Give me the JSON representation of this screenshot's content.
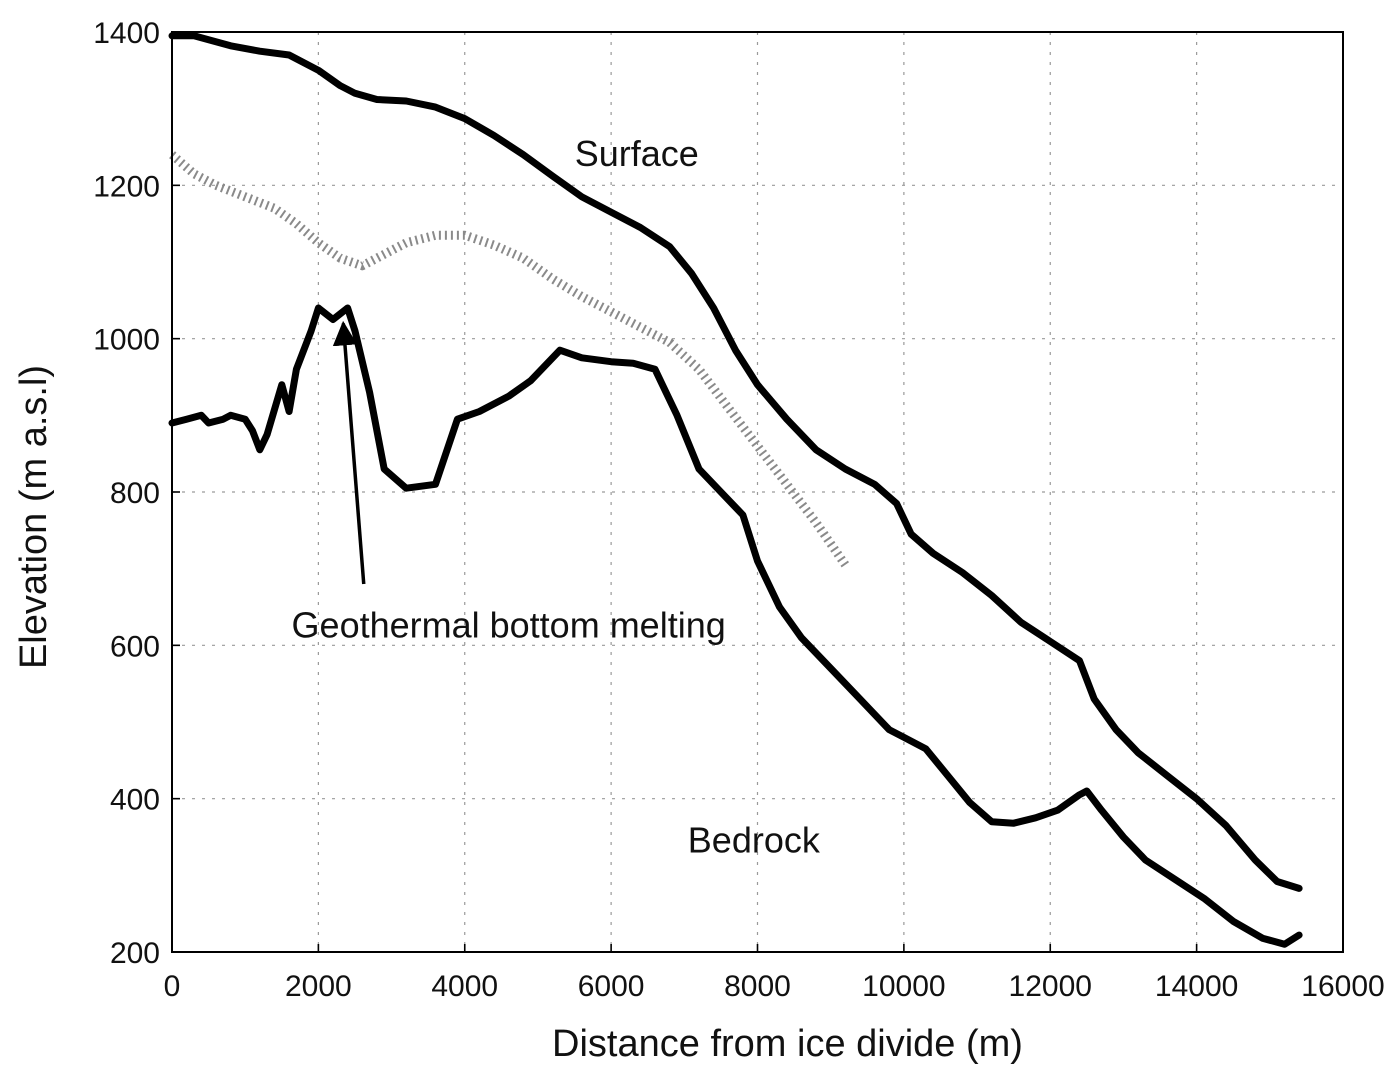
{
  "chart_data": {
    "type": "line",
    "title": "",
    "xlabel": "Distance from ice divide (m)",
    "ylabel": "Elevation (m a.s.l)",
    "xlim": [
      0,
      16000
    ],
    "ylim": [
      200,
      1400
    ],
    "xticks": [
      0,
      2000,
      4000,
      6000,
      8000,
      10000,
      12000,
      14000,
      16000
    ],
    "yticks": [
      200,
      400,
      600,
      800,
      1000,
      1200,
      1400
    ],
    "grid": true,
    "series": [
      {
        "name": "Surface",
        "style": "solid",
        "color": "#000000",
        "x": [
          0,
          300,
          500,
          800,
          1200,
          1600,
          2000,
          2300,
          2500,
          2800,
          3200,
          3600,
          4000,
          4400,
          4800,
          5200,
          5600,
          6000,
          6400,
          6800,
          7100,
          7400,
          7700,
          8000,
          8400,
          8800,
          9200,
          9600,
          9900,
          10100,
          10400,
          10800,
          11200,
          11600,
          12000,
          12400,
          12600,
          12900,
          13200,
          13600,
          14000,
          14400,
          14800,
          15100,
          15400
        ],
        "y": [
          1395,
          1395,
          1390,
          1382,
          1375,
          1370,
          1350,
          1330,
          1320,
          1312,
          1310,
          1302,
          1287,
          1265,
          1240,
          1212,
          1185,
          1165,
          1145,
          1120,
          1085,
          1040,
          985,
          940,
          895,
          855,
          830,
          810,
          785,
          745,
          720,
          695,
          665,
          630,
          605,
          580,
          530,
          490,
          460,
          430,
          400,
          365,
          320,
          292,
          283
        ]
      },
      {
        "name": "Bedrock",
        "style": "solid",
        "color": "#000000",
        "x": [
          0,
          200,
          400,
          500,
          700,
          800,
          1000,
          1100,
          1200,
          1300,
          1500,
          1600,
          1700,
          1900,
          2000,
          2200,
          2400,
          2500,
          2700,
          2900,
          3200,
          3600,
          3900,
          4200,
          4600,
          4900,
          5300,
          5600,
          6000,
          6300,
          6600,
          6900,
          7200,
          7500,
          7800,
          8000,
          8300,
          8600,
          9000,
          9400,
          9800,
          10000,
          10300,
          10600,
          10900,
          11200,
          11500,
          11800,
          12100,
          12400,
          12500,
          12700,
          13000,
          13300,
          13700,
          14100,
          14500,
          14900,
          15200,
          15400
        ],
        "y": [
          890,
          895,
          900,
          890,
          895,
          900,
          895,
          880,
          855,
          875,
          940,
          905,
          960,
          1010,
          1040,
          1025,
          1040,
          1010,
          930,
          830,
          805,
          810,
          895,
          905,
          925,
          945,
          985,
          975,
          970,
          968,
          960,
          900,
          830,
          800,
          770,
          710,
          650,
          610,
          570,
          530,
          490,
          480,
          465,
          430,
          395,
          370,
          368,
          375,
          385,
          405,
          410,
          385,
          350,
          320,
          295,
          270,
          240,
          218,
          210,
          222
        ]
      },
      {
        "name": "",
        "style": "dotted",
        "color": "#8a8a8a",
        "x": [
          0,
          300,
          600,
          1000,
          1400,
          1700,
          2000,
          2300,
          2600,
          2900,
          3200,
          3600,
          4000,
          4400,
          4800,
          5200,
          5600,
          6000,
          6400,
          6800,
          7200,
          7600,
          8000,
          8400,
          8800,
          9200
        ],
        "y": [
          1240,
          1215,
          1200,
          1185,
          1170,
          1150,
          1125,
          1105,
          1095,
          1110,
          1125,
          1135,
          1135,
          1122,
          1105,
          1078,
          1055,
          1035,
          1015,
          995,
          960,
          910,
          860,
          810,
          760,
          705
        ]
      }
    ],
    "annotations": [
      {
        "text": "Surface",
        "x": 6350,
        "y": 1225
      },
      {
        "text": "Bedrock",
        "x": 7950,
        "y": 330
      },
      {
        "text": "Geothermal bottom melting",
        "x": 4600,
        "y": 610,
        "arrow_to": {
          "x": 2340,
          "y": 1020
        },
        "arrow_from": {
          "x": 2620,
          "y": 680
        }
      }
    ]
  }
}
